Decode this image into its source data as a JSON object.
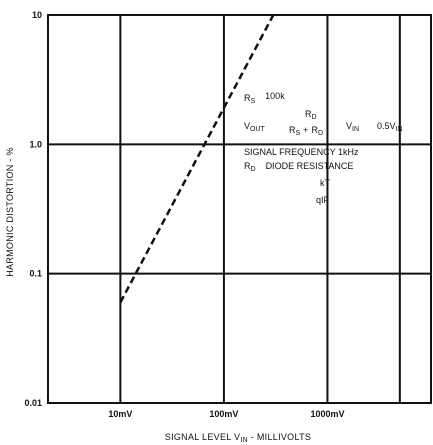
{
  "chart_data": {
    "type": "line",
    "title": "",
    "xlabel": "SIGNAL LEVEL V",
    "xlabel_sub": "IN",
    "xlabel_suffix": " - MILLIVOLTS",
    "ylabel": "HARMONIC DISTORTION - %",
    "x_scale": "log",
    "y_scale": "log",
    "xlim": [
      2,
      10000
    ],
    "ylim": [
      0.01,
      10
    ],
    "x_ticks": [
      {
        "value": 10,
        "label": "10mV"
      },
      {
        "value": 100,
        "label": "100mV"
      },
      {
        "value": 1000,
        "label": "1000mV"
      }
    ],
    "y_ticks": [
      {
        "value": 10,
        "label": "10"
      },
      {
        "value": 1,
        "label": "1.0"
      },
      {
        "value": 0.1,
        "label": "0.1"
      },
      {
        "value": 0.01,
        "label": "0.01"
      }
    ],
    "x_gridlines": [
      10,
      100,
      1000,
      5000
    ],
    "y_gridlines": [
      0.1,
      1
    ],
    "grid": true,
    "series": [
      {
        "name": "",
        "style": "dashed",
        "x": [
          10,
          300
        ],
        "y": [
          0.06,
          10
        ]
      }
    ],
    "annotations": {
      "rs_label": "R",
      "rs_sub": "S",
      "rs_value": "100k",
      "vout_label": "V",
      "vout_sub": "OUT",
      "frac_num": "R",
      "frac_num_sub": "D",
      "frac_den_a": "R",
      "frac_den_a_sub": "S",
      "frac_den_plus": "+",
      "frac_den_b": "R",
      "frac_den_b_sub": "D",
      "vin_label": "V",
      "vin_sub": "IN",
      "vin_value": "0.5V",
      "vin_value_sub": "IN",
      "signal_freq": "SIGNAL FREQUENCY 1kHz",
      "rd_label": "R",
      "rd_sub": "D",
      "rd_text": "DIODE RESISTANCE",
      "kt": "kT",
      "qif": "qIF"
    }
  }
}
